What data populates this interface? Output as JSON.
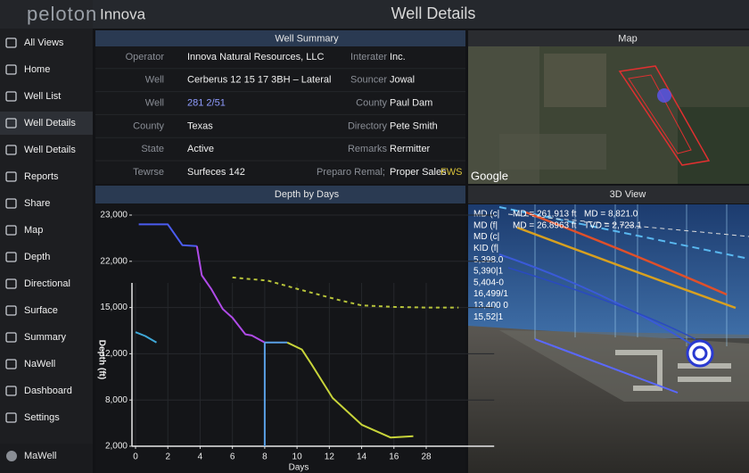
{
  "header": {
    "logo": "peloton",
    "company": "Innova",
    "title": "Well Details"
  },
  "nav": {
    "items": [
      "All Views",
      "Home",
      "Well List",
      "Well Details",
      "Well Details",
      "Reports",
      "Share",
      "Map",
      "Depth",
      "Directional",
      "Surface",
      "Summary",
      "NaWell",
      "Dashboard",
      "Settings"
    ],
    "active": 3,
    "footer": "MaWell"
  },
  "well_summary": {
    "title": "Well Summary",
    "rows": [
      [
        "Operator",
        "Innova Natural Resources, LLC",
        "Interater",
        "Inc."
      ],
      [
        "Well",
        "Cerberus 12 15 17 3BH – Lateral",
        "Souncer",
        "Jowal"
      ],
      [
        "Well",
        "281 2/51",
        "County",
        "Paul Dam"
      ],
      [
        "County",
        "Texas",
        "Directory",
        "Pete Smith"
      ],
      [
        "State",
        "Active",
        "Remarks",
        "Rermitter"
      ],
      [
        "Tewrse",
        "Surfeces 142",
        "Preparo Remal;",
        "Proper Sales",
        "FWS"
      ]
    ]
  },
  "map": {
    "title": "Map",
    "attribution": "Google"
  },
  "view_3d": {
    "title": "3D View",
    "labels": [
      [
        "MD (c|",
        "MD = 261,913 ft",
        "MD = 8,821.0"
      ],
      [
        "MD (f|",
        "MD = 26.8963 ft",
        "TVD = 2,723.1"
      ],
      [
        "MD (c|"
      ],
      [
        "KID (f|"
      ],
      [
        "5,398.0"
      ],
      [
        "5,390|1"
      ],
      [
        "5,404-0"
      ],
      [
        "16,499/1"
      ],
      [
        "13,400 0"
      ],
      [
        "15,52|1"
      ]
    ]
  },
  "chart_data": {
    "type": "line",
    "title": "Depth by Days",
    "xlabel": "Days",
    "ylabel": "Depth (ft)",
    "xlim": [
      0,
      40
    ],
    "ylim": [
      2000,
      23200
    ],
    "grid": true,
    "xticks": [
      0,
      2,
      4,
      6,
      8,
      10,
      12,
      14,
      16,
      28
    ],
    "yticks": [
      {
        "value": 23000,
        "label": "23,000"
      },
      {
        "value": 22000,
        "label": "22,000"
      },
      {
        "value": 15000,
        "label": "15,000"
      },
      {
        "value": 12000,
        "label": "12,000"
      },
      {
        "value": 8000,
        "label": "8,000"
      },
      {
        "value": 2000,
        "label": "2,000"
      }
    ],
    "series": [
      {
        "color": "#4b5cf0",
        "x": [
          0.2,
          2,
          2.9,
          3.8
        ],
        "values": [
          22800,
          22800,
          22350,
          22330
        ]
      },
      {
        "color": "#b04be8",
        "x": [
          3.8,
          4.1,
          4.7,
          5.4,
          6.0,
          6.8,
          7.2,
          8.0
        ],
        "values": [
          22330,
          19880,
          17770,
          14900,
          14340,
          13260,
          13190,
          12730
        ]
      },
      {
        "color": "#5aa0e6",
        "x": [
          8.0,
          9.4
        ],
        "values": [
          12730,
          12730
        ]
      },
      {
        "color": "#5aa0e6",
        "x": [
          8,
          8
        ],
        "values": [
          12730,
          2000
        ]
      },
      {
        "color": "#c8d43a",
        "x": [
          9.4,
          10.3,
          10.9,
          12.2,
          14.0,
          15.8,
          23.2
        ],
        "values": [
          12730,
          12280,
          11090,
          8180,
          4790,
          3120,
          3300
        ]
      },
      {
        "color": "#3fa8d8",
        "x": [
          0,
          0.6,
          1.3
        ],
        "values": [
          13400,
          13150,
          12730
        ]
      },
      {
        "color": "#b8c43a",
        "style": "dashed",
        "x": [
          6,
          8.2,
          10.1,
          12.6,
          14,
          16,
          28,
          40
        ],
        "values": [
          19560,
          19070,
          17770,
          16140,
          15330,
          15100,
          15000,
          15000
        ]
      }
    ]
  }
}
